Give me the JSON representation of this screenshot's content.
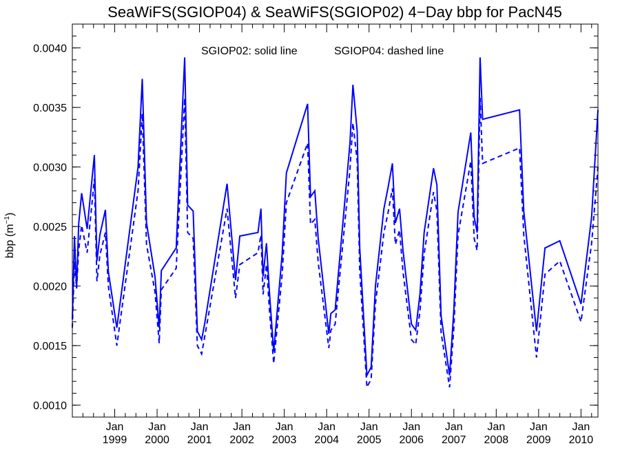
{
  "chart_data": {
    "type": "line",
    "title": "SeaWiFS(SGIOP04) & SeaWiFS(SGIOP02) 4−Day bbp for PacN45",
    "ylabel_main": "bbp (m",
    "ylabel_sup": "−1",
    "ylabel_close": ")",
    "xlabel": "",
    "annotation_solid": "SGIOP02: solid line",
    "annotation_dashed": "SGIOP04: dashed line",
    "ylim": [
      0.0009,
      0.0042
    ],
    "xlim": [
      1998.0,
      2010.4
    ],
    "yticks": [
      0.001,
      0.0015,
      0.002,
      0.0025,
      0.003,
      0.0035,
      0.004
    ],
    "ytick_labels": [
      "0.0010",
      "0.0015",
      "0.0020",
      "0.0025",
      "0.0030",
      "0.0035",
      "0.0040"
    ],
    "xticks": [
      1999,
      2000,
      2001,
      2002,
      2003,
      2004,
      2005,
      2006,
      2007,
      2008,
      2009,
      2010
    ],
    "xtick_month_labels": [
      "Jan",
      "Jan",
      "Jan",
      "Jan",
      "Jan",
      "Jan",
      "Jan",
      "Jan",
      "Jan",
      "Jan",
      "Jan",
      "Jan"
    ],
    "xtick_year_labels": [
      "1999",
      "2000",
      "2001",
      "2002",
      "2003",
      "2004",
      "2005",
      "2006",
      "2007",
      "2008",
      "2009",
      "2010"
    ],
    "line_color": "#0000ff",
    "series": [
      {
        "style": "solid",
        "x": [
          1998.0,
          1998.05,
          1998.1,
          1998.15,
          1998.22,
          1998.35,
          1998.52,
          1998.58,
          1998.65,
          1998.78,
          1998.85,
          1999.05,
          1999.55,
          1999.65,
          1999.75,
          1999.95,
          2000.05,
          2000.1,
          2000.45,
          2000.65,
          2000.72,
          2000.85,
          2000.95,
          2001.05,
          2001.12,
          2001.65,
          2001.85,
          2001.95,
          2002.38,
          2002.45,
          2002.5,
          2002.58,
          2002.65,
          2002.75,
          2002.95,
          2003.05,
          2003.55,
          2003.62,
          2003.72,
          2003.8,
          2004.05,
          2004.1,
          2004.2,
          2004.55,
          2004.62,
          2004.72,
          2004.78,
          2004.95,
          2005.05,
          2005.15,
          2005.35,
          2005.45,
          2005.55,
          2005.62,
          2005.72,
          2005.8,
          2006.0,
          2006.1,
          2006.2,
          2006.3,
          2006.52,
          2006.6,
          2006.7,
          2006.9,
          2007.0,
          2007.1,
          2007.4,
          2007.48,
          2007.55,
          2007.62,
          2007.68,
          2008.55,
          2008.65,
          2008.95,
          2009.15,
          2009.5,
          2010.0,
          2010.25,
          2010.4
        ],
        "y": [
          0.00172,
          0.00242,
          0.00198,
          0.00252,
          0.00278,
          0.00248,
          0.0031,
          0.00221,
          0.00243,
          0.00264,
          0.00212,
          0.00165,
          0.003,
          0.00374,
          0.00253,
          0.00208,
          0.00165,
          0.00213,
          0.00232,
          0.00392,
          0.00268,
          0.00263,
          0.00162,
          0.00155,
          0.00168,
          0.00286,
          0.00205,
          0.00242,
          0.00245,
          0.00265,
          0.00208,
          0.00236,
          0.00195,
          0.00145,
          0.00227,
          0.00295,
          0.00353,
          0.00275,
          0.0028,
          0.0024,
          0.0016,
          0.00177,
          0.0018,
          0.0032,
          0.00369,
          0.0033,
          0.00232,
          0.00125,
          0.00132,
          0.002,
          0.00265,
          0.00283,
          0.00303,
          0.00253,
          0.00265,
          0.0023,
          0.00168,
          0.00163,
          0.00193,
          0.00245,
          0.00299,
          0.00285,
          0.00175,
          0.00125,
          0.0018,
          0.00262,
          0.00329,
          0.00258,
          0.00245,
          0.00392,
          0.0034,
          0.00348,
          0.00263,
          0.00162,
          0.00232,
          0.00238,
          0.00185,
          0.00258,
          0.00348
        ]
      },
      {
        "style": "dashed",
        "x": [
          1998.0,
          1998.05,
          1998.1,
          1998.15,
          1998.22,
          1998.35,
          1998.52,
          1998.58,
          1998.65,
          1998.78,
          1998.85,
          1999.05,
          1999.55,
          1999.65,
          1999.75,
          1999.95,
          2000.05,
          2000.1,
          2000.45,
          2000.65,
          2000.72,
          2000.85,
          2000.95,
          2001.05,
          2001.12,
          2001.65,
          2001.85,
          2001.95,
          2002.38,
          2002.45,
          2002.5,
          2002.58,
          2002.65,
          2002.75,
          2002.95,
          2003.05,
          2003.55,
          2003.62,
          2003.72,
          2003.8,
          2004.05,
          2004.1,
          2004.2,
          2004.55,
          2004.62,
          2004.72,
          2004.78,
          2004.95,
          2005.05,
          2005.15,
          2005.35,
          2005.45,
          2005.55,
          2005.62,
          2005.72,
          2005.8,
          2006.0,
          2006.1,
          2006.2,
          2006.3,
          2006.52,
          2006.6,
          2006.7,
          2006.9,
          2007.0,
          2007.1,
          2007.4,
          2007.48,
          2007.55,
          2007.62,
          2007.68,
          2008.55,
          2008.65,
          2008.95,
          2009.15,
          2009.5,
          2010.0,
          2010.25,
          2010.4
        ],
        "y": [
          0.00165,
          0.0022,
          0.00198,
          0.0023,
          0.00251,
          0.00228,
          0.0029,
          0.00204,
          0.00226,
          0.00245,
          0.002,
          0.0015,
          0.0028,
          0.00345,
          0.00235,
          0.00195,
          0.00152,
          0.00197,
          0.00215,
          0.00358,
          0.00245,
          0.0024,
          0.0015,
          0.00143,
          0.00157,
          0.00265,
          0.0019,
          0.00218,
          0.00228,
          0.00243,
          0.00193,
          0.00218,
          0.0018,
          0.00135,
          0.0021,
          0.0027,
          0.0032,
          0.00252,
          0.00256,
          0.0022,
          0.00148,
          0.00163,
          0.00168,
          0.00298,
          0.00337,
          0.00305,
          0.00213,
          0.00115,
          0.00122,
          0.00185,
          0.00245,
          0.00262,
          0.00282,
          0.00235,
          0.00247,
          0.00212,
          0.00155,
          0.00151,
          0.00179,
          0.00227,
          0.00279,
          0.00263,
          0.00161,
          0.00115,
          0.00165,
          0.00243,
          0.00305,
          0.0024,
          0.0023,
          0.00358,
          0.00303,
          0.00316,
          0.00243,
          0.0014,
          0.0021,
          0.00221,
          0.0017,
          0.00236,
          0.003
        ]
      }
    ]
  }
}
